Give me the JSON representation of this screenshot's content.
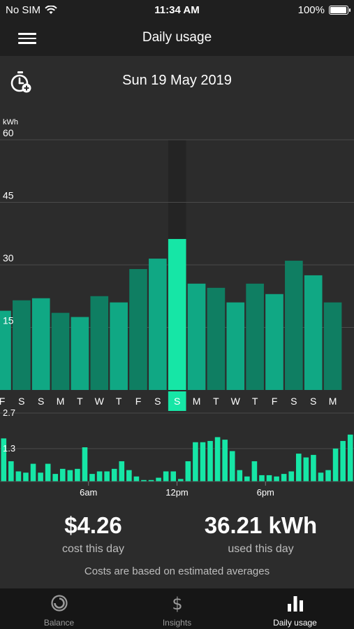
{
  "status": {
    "carrier": "No SIM",
    "time": "11:34 AM",
    "battery": "100%",
    "battery_level": 1.0
  },
  "navbar": {
    "title": "Daily usage",
    "menu_icon": "hamburger-icon"
  },
  "datebar": {
    "date": "Sun 19 May 2019",
    "icon": "stopwatch-add-icon"
  },
  "chart_data": [
    {
      "type": "bar",
      "ylabel": "kWh",
      "ylim": [
        0,
        60
      ],
      "yticks": [
        "60",
        "45",
        "30",
        "15"
      ],
      "categories": [
        "F",
        "S",
        "S",
        "M",
        "T",
        "W",
        "T",
        "F",
        "S",
        "S",
        "M",
        "T",
        "W",
        "T",
        "F",
        "S",
        "S",
        "M"
      ],
      "values": [
        19,
        21.5,
        22,
        18.5,
        17.5,
        22.5,
        21,
        29,
        31.5,
        36.21,
        25.5,
        24.5,
        21,
        25.5,
        23,
        31,
        27.5,
        21
      ],
      "selected_index": 9,
      "colors": {
        "bar_light": "#10a884",
        "bar_dark": "#0f7e62",
        "selected": "#16e6a6"
      }
    },
    {
      "type": "bar",
      "ylabel": "",
      "ylim": [
        0,
        2.7
      ],
      "yticks": [
        "2.7",
        "1.3"
      ],
      "xticks": [
        {
          "label": "6am",
          "hour": 6
        },
        {
          "label": "12pm",
          "hour": 12
        },
        {
          "label": "6pm",
          "hour": 18
        }
      ],
      "values": [
        1.7,
        0.8,
        0.4,
        0.35,
        0.7,
        0.35,
        0.7,
        0.3,
        0.5,
        0.45,
        0.5,
        1.35,
        0.3,
        0.4,
        0.4,
        0.5,
        0.8,
        0.45,
        0.2,
        0.06,
        0.06,
        0.15,
        0.4,
        0.4,
        0.1,
        0.8,
        1.55,
        1.55,
        1.6,
        1.75,
        1.65,
        1.2,
        0.45,
        0.2,
        0.8,
        0.25,
        0.25,
        0.2,
        0.3,
        0.4,
        1.1,
        0.95,
        1.05,
        0.35,
        0.45,
        1.3,
        1.6,
        1.85
      ],
      "color": "#16e6a6"
    }
  ],
  "summary": {
    "cost": "$4.26",
    "cost_label": "cost this day",
    "usage": "36.21 kWh",
    "usage_label": "used this day",
    "note": "Costs are based on estimated averages"
  },
  "tabs": [
    {
      "label": "Balance",
      "icon": "balance-ring-icon",
      "active": false
    },
    {
      "label": "Insights",
      "icon": "dollar-icon",
      "active": false
    },
    {
      "label": "Daily usage",
      "icon": "bar-chart-icon",
      "active": true
    }
  ]
}
